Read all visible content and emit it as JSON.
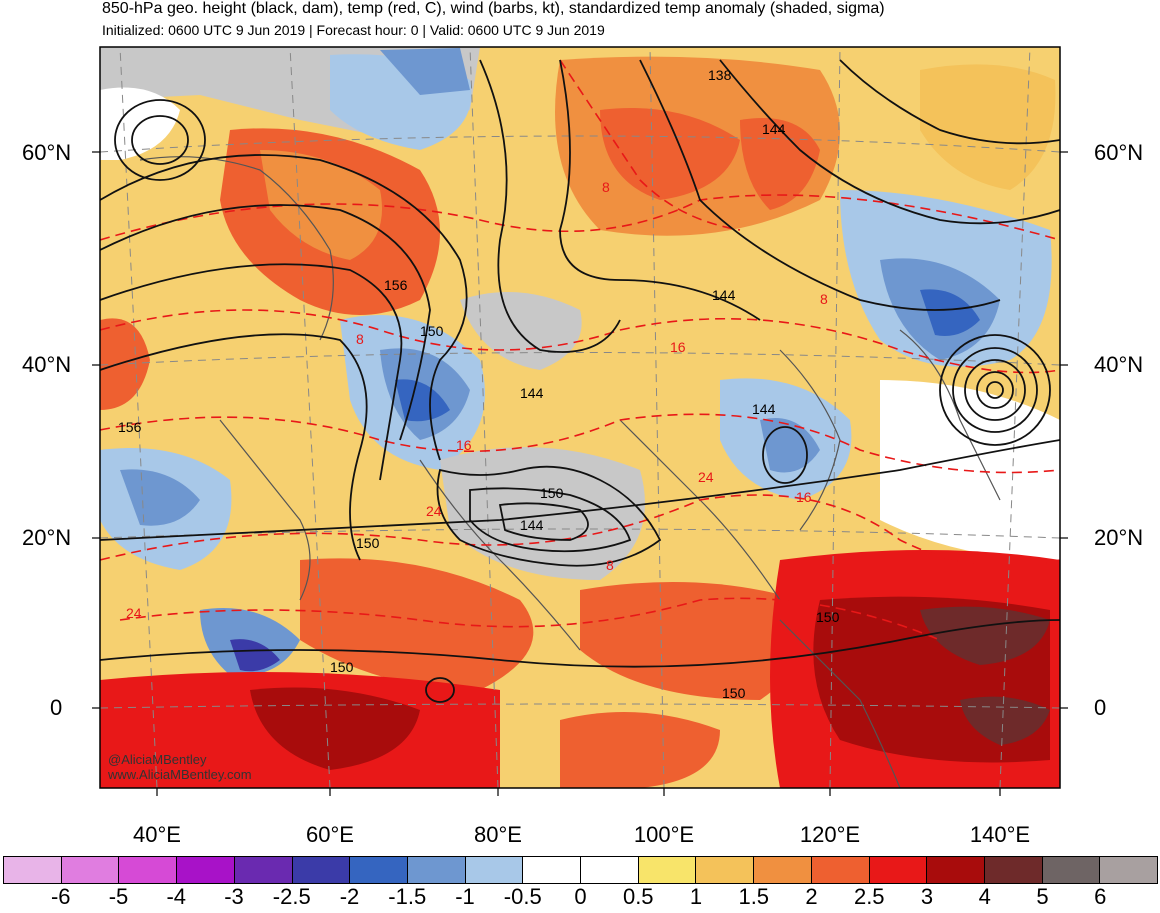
{
  "header": {
    "title": "850-hPa geo. height (black, dam), temp (red, C), wind (barbs, kt), standardized temp anomaly (shaded, sigma)",
    "subtitle": "Initialized: 0600 UTC 9 Jun 2019 | Forecast hour: 0 | Valid: 0600 UTC 9 Jun 2019"
  },
  "map": {
    "lat_labels": [
      "60°N",
      "40°N",
      "20°N",
      "0"
    ],
    "lon_labels": [
      "40°E",
      "60°E",
      "80°E",
      "100°E",
      "120°E",
      "140°E"
    ],
    "height_contour_labels": [
      "138",
      "144",
      "156",
      "150",
      "144",
      "144",
      "144",
      "156",
      "150",
      "144",
      "150",
      "150",
      "150",
      "150"
    ],
    "temp_contour_labels": [
      "8",
      "8",
      "8",
      "16",
      "16",
      "24",
      "24",
      "16",
      "24",
      "8"
    ],
    "watermark": [
      "@AliciaMBentley",
      "www.AliciaMBentley.com"
    ]
  },
  "colorbar": {
    "labels": [
      "-6",
      "-5",
      "-4",
      "-3",
      "-2.5",
      "-2",
      "-1.5",
      "-1",
      "-0.5",
      "0",
      "0.5",
      "1",
      "1.5",
      "2",
      "2.5",
      "3",
      "4",
      "5",
      "6"
    ],
    "colors": [
      "#e8b4e8",
      "#e07de0",
      "#d64ad6",
      "#a812c8",
      "#6a2ab0",
      "#3b3ba8",
      "#3565c0",
      "#6e97d0",
      "#a8c8e8",
      "#ffffff",
      "#ffffff",
      "#f8e46a",
      "#f4c25a",
      "#f09040",
      "#ee6030",
      "#e81818",
      "#a80c0c",
      "#6e2a2a",
      "#6e6464",
      "#a8a0a0"
    ]
  }
}
